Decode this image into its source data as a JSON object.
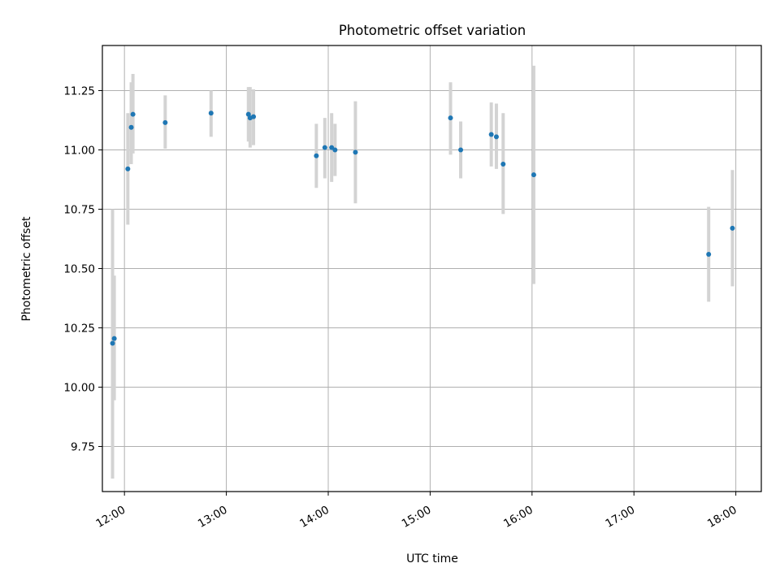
{
  "chart_data": {
    "type": "scatter",
    "title": "Photometric offset variation",
    "xlabel": "UTC time",
    "ylabel": "Photometric offset",
    "x_axis_type": "time",
    "xlim": [
      "11:47",
      "18:15"
    ],
    "ylim": [
      9.56,
      11.44
    ],
    "x_ticks": [
      "12:00",
      "13:00",
      "14:00",
      "15:00",
      "16:00",
      "17:00",
      "18:00"
    ],
    "y_ticks": [
      "9.75",
      "10.00",
      "10.25",
      "10.50",
      "10.75",
      "11.00",
      "11.25"
    ],
    "grid": true,
    "legend": "none",
    "marker_color": "#1f77b4",
    "errorbar_color": "#d3d3d3",
    "points": [
      {
        "x": "11:53",
        "y": 10.185,
        "err_low": 9.615,
        "err_high": 10.75
      },
      {
        "x": "11:54",
        "y": 10.205,
        "err_low": 9.945,
        "err_high": 10.47
      },
      {
        "x": "12:02",
        "y": 10.92,
        "err_low": 10.685,
        "err_high": 11.155
      },
      {
        "x": "12:04",
        "y": 11.095,
        "err_low": 10.94,
        "err_high": 11.285
      },
      {
        "x": "12:05",
        "y": 11.15,
        "err_low": 10.985,
        "err_high": 11.32
      },
      {
        "x": "12:24",
        "y": 11.115,
        "err_low": 11.005,
        "err_high": 11.23
      },
      {
        "x": "12:51",
        "y": 11.155,
        "err_low": 11.055,
        "err_high": 11.25
      },
      {
        "x": "13:13",
        "y": 11.15,
        "err_low": 11.035,
        "err_high": 11.265
      },
      {
        "x": "13:14",
        "y": 11.135,
        "err_low": 11.01,
        "err_high": 11.265
      },
      {
        "x": "13:16",
        "y": 11.14,
        "err_low": 11.02,
        "err_high": 11.255
      },
      {
        "x": "13:53",
        "y": 10.975,
        "err_low": 10.84,
        "err_high": 11.11
      },
      {
        "x": "13:58",
        "y": 11.01,
        "err_low": 10.88,
        "err_high": 11.135
      },
      {
        "x": "14:02",
        "y": 11.01,
        "err_low": 10.865,
        "err_high": 11.155
      },
      {
        "x": "14:04",
        "y": 11.0,
        "err_low": 10.89,
        "err_high": 11.11
      },
      {
        "x": "14:16",
        "y": 10.99,
        "err_low": 10.775,
        "err_high": 11.205
      },
      {
        "x": "15:12",
        "y": 11.135,
        "err_low": 10.98,
        "err_high": 11.285
      },
      {
        "x": "15:18",
        "y": 11.0,
        "err_low": 10.88,
        "err_high": 11.12
      },
      {
        "x": "15:36",
        "y": 11.065,
        "err_low": 10.93,
        "err_high": 11.2
      },
      {
        "x": "15:39",
        "y": 11.055,
        "err_low": 10.92,
        "err_high": 11.195
      },
      {
        "x": "15:43",
        "y": 10.94,
        "err_low": 10.73,
        "err_high": 11.155
      },
      {
        "x": "16:01",
        "y": 10.895,
        "err_low": 10.435,
        "err_high": 11.355
      },
      {
        "x": "17:44",
        "y": 10.56,
        "err_low": 10.36,
        "err_high": 10.76
      },
      {
        "x": "17:58",
        "y": 10.67,
        "err_low": 10.425,
        "err_high": 10.915
      }
    ]
  }
}
